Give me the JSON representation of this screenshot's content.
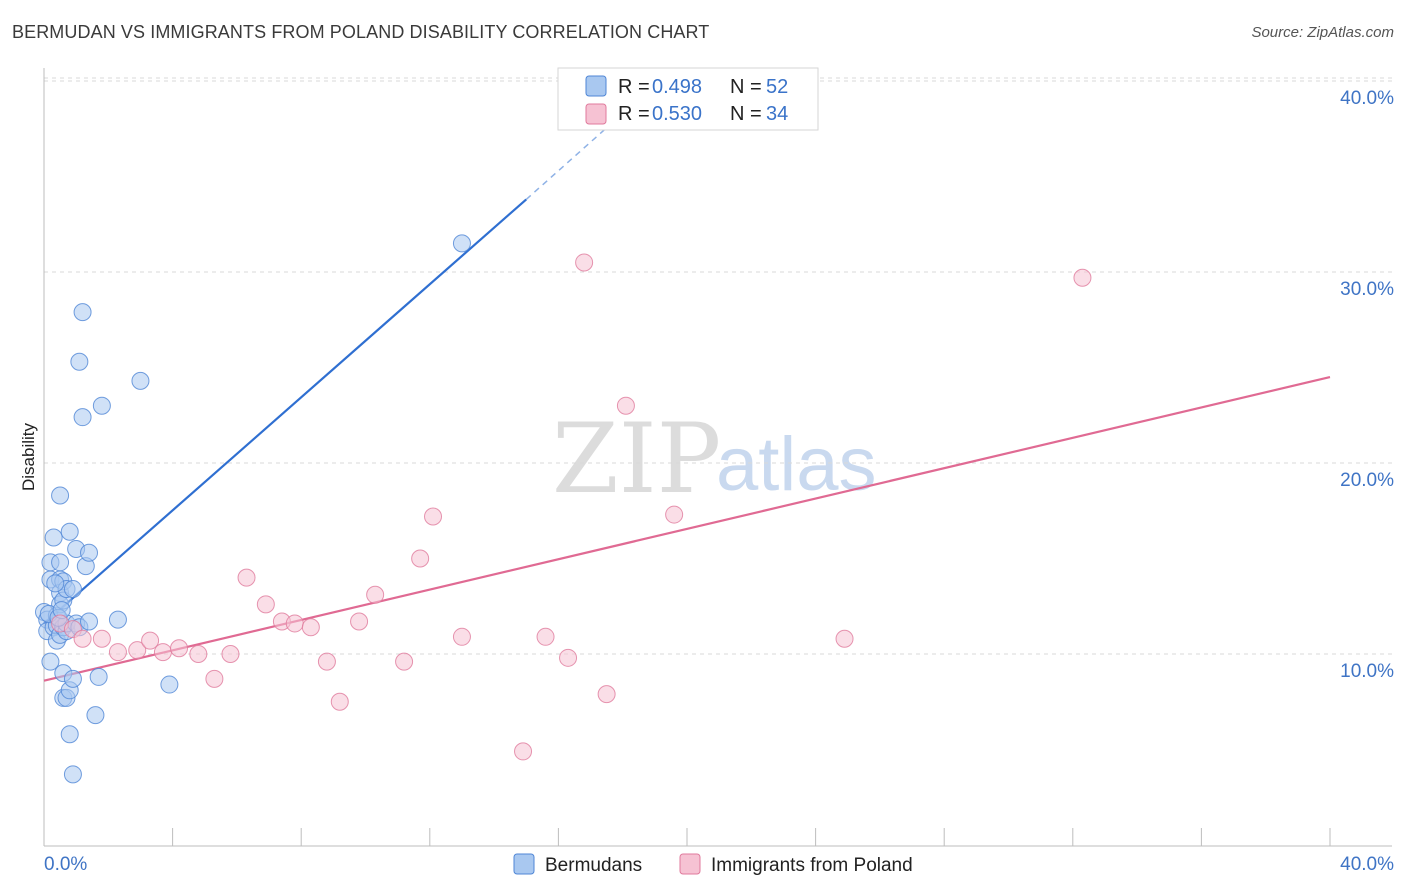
{
  "title": "BERMUDAN VS IMMIGRANTS FROM POLAND DISABILITY CORRELATION CHART",
  "source": "Source: ZipAtlas.com",
  "watermark": {
    "zip": "ZIP",
    "atlas": "atlas"
  },
  "legend_top": {
    "rows": [
      {
        "r_label": "R = ",
        "r_value": "0.498",
        "n_label": "N = ",
        "n_value": "52"
      },
      {
        "r_label": "R = ",
        "r_value": "0.530",
        "n_label": "N = ",
        "n_value": "34"
      }
    ]
  },
  "legend_bottom": [
    "Bermudans",
    "Immigrants from Poland"
  ],
  "colors": {
    "blue_fill": "#a9c8f0",
    "blue_stroke": "#4f86d6",
    "blue_line": "#2f6fd1",
    "pink_fill": "#f6c2d3",
    "pink_stroke": "#e07a9c",
    "pink_line": "#e06a93",
    "grid": "#d9d9d9",
    "tick_text": "#3f74c5"
  },
  "chart_data": {
    "type": "scatter",
    "title": "BERMUDAN VS IMMIGRANTS FROM POLAND DISABILITY CORRELATION CHART",
    "xlabel": "",
    "ylabel": "Disability",
    "xlim": [
      0,
      40
    ],
    "ylim": [
      1,
      41
    ],
    "x_tick_labels": [
      "0.0%",
      "40.0%"
    ],
    "y_ticks": [
      10,
      20,
      30,
      40
    ],
    "y_tick_labels": [
      "10.0%",
      "20.0%",
      "30.0%",
      "40.0%"
    ],
    "grid": true,
    "legend": "top-center",
    "series": [
      {
        "name": "Bermudans",
        "r": 0.498,
        "n": 52,
        "points": [
          [
            0.0,
            12.2
          ],
          [
            0.1,
            11.8
          ],
          [
            0.1,
            11.2
          ],
          [
            0.2,
            13.9
          ],
          [
            0.2,
            14.8
          ],
          [
            0.2,
            9.6
          ],
          [
            0.3,
            16.1
          ],
          [
            0.3,
            11.4
          ],
          [
            0.4,
            12.0
          ],
          [
            0.4,
            10.7
          ],
          [
            0.4,
            11.5
          ],
          [
            0.5,
            14.8
          ],
          [
            0.5,
            13.9
          ],
          [
            0.5,
            13.2
          ],
          [
            0.5,
            11.0
          ],
          [
            0.5,
            18.3
          ],
          [
            0.5,
            12.6
          ],
          [
            0.6,
            12.8
          ],
          [
            0.6,
            13.8
          ],
          [
            0.6,
            11.4
          ],
          [
            0.6,
            9.0
          ],
          [
            0.6,
            7.7
          ],
          [
            0.7,
            7.7
          ],
          [
            0.7,
            13.4
          ],
          [
            0.7,
            11.2
          ],
          [
            0.7,
            11.6
          ],
          [
            0.8,
            16.4
          ],
          [
            0.8,
            8.1
          ],
          [
            0.8,
            5.8
          ],
          [
            0.9,
            13.4
          ],
          [
            0.9,
            3.7
          ],
          [
            0.9,
            8.7
          ],
          [
            1.0,
            15.5
          ],
          [
            1.0,
            11.6
          ],
          [
            1.1,
            11.4
          ],
          [
            1.1,
            25.3
          ],
          [
            1.2,
            22.4
          ],
          [
            1.2,
            27.9
          ],
          [
            1.3,
            14.6
          ],
          [
            1.4,
            15.3
          ],
          [
            1.4,
            11.7
          ],
          [
            1.6,
            6.8
          ],
          [
            1.7,
            8.8
          ],
          [
            1.8,
            23.0
          ],
          [
            2.3,
            11.8
          ],
          [
            3.0,
            24.3
          ],
          [
            3.9,
            8.4
          ],
          [
            13.0,
            31.5
          ],
          [
            0.15,
            12.1
          ],
          [
            0.35,
            13.7
          ],
          [
            0.45,
            11.9
          ],
          [
            0.55,
            12.3
          ]
        ],
        "trendline": {
          "x0": 0.0,
          "y0": 11.6,
          "x1": 15.0,
          "y1": 33.8,
          "dash_to_x": 18.0,
          "dash_to_y": 38.3
        }
      },
      {
        "name": "Immigrants from Poland",
        "r": 0.53,
        "n": 34,
        "points": [
          [
            0.5,
            11.6
          ],
          [
            0.9,
            11.3
          ],
          [
            1.2,
            10.8
          ],
          [
            1.8,
            10.8
          ],
          [
            2.3,
            10.1
          ],
          [
            2.9,
            10.2
          ],
          [
            3.3,
            10.7
          ],
          [
            3.7,
            10.1
          ],
          [
            4.2,
            10.3
          ],
          [
            4.8,
            10.0
          ],
          [
            5.3,
            8.7
          ],
          [
            5.8,
            10.0
          ],
          [
            6.3,
            14.0
          ],
          [
            6.9,
            12.6
          ],
          [
            7.4,
            11.7
          ],
          [
            7.8,
            11.6
          ],
          [
            8.3,
            11.4
          ],
          [
            8.8,
            9.6
          ],
          [
            9.2,
            7.5
          ],
          [
            9.8,
            11.7
          ],
          [
            10.3,
            13.1
          ],
          [
            11.2,
            9.6
          ],
          [
            11.7,
            15.0
          ],
          [
            12.1,
            17.2
          ],
          [
            13.0,
            10.9
          ],
          [
            14.9,
            4.9
          ],
          [
            15.6,
            10.9
          ],
          [
            16.3,
            9.8
          ],
          [
            16.8,
            30.5
          ],
          [
            17.5,
            7.9
          ],
          [
            18.1,
            23.0
          ],
          [
            19.6,
            17.3
          ],
          [
            24.9,
            10.8
          ],
          [
            32.3,
            29.7
          ]
        ],
        "trendline": {
          "x0": 0.0,
          "y0": 8.6,
          "x1": 40.0,
          "y1": 24.5
        }
      }
    ]
  }
}
